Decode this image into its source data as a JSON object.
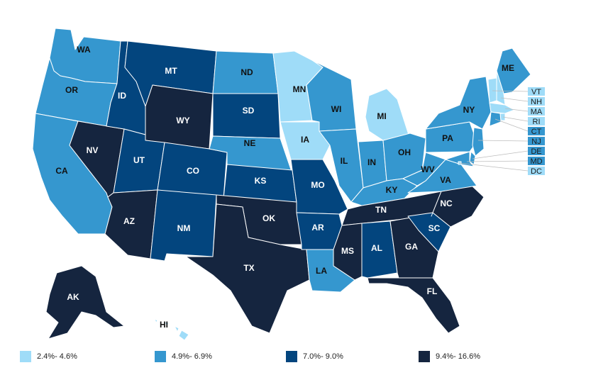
{
  "colors": {
    "c1": "#9fdcf8",
    "c2": "#3597cf",
    "c3": "#03457e",
    "c4": "#15253f"
  },
  "legend": [
    {
      "label": "2.4%- 4.6%",
      "color": "#9fdcf8"
    },
    {
      "label": "4.9%- 6.9%",
      "color": "#3597cf"
    },
    {
      "label": "7.0%- 9.0%",
      "color": "#03457e"
    },
    {
      "label": "9.4%- 16.6%",
      "color": "#15253f"
    }
  ],
  "states": {
    "WA": {
      "label": "WA",
      "bin": 2
    },
    "OR": {
      "label": "OR",
      "bin": 2
    },
    "CA": {
      "label": "CA",
      "bin": 2
    },
    "NV": {
      "label": "NV",
      "bin": 4
    },
    "ID": {
      "label": "ID",
      "bin": 3
    },
    "MT": {
      "label": "MT",
      "bin": 3
    },
    "WY": {
      "label": "WY",
      "bin": 4
    },
    "UT": {
      "label": "UT",
      "bin": 3
    },
    "CO": {
      "label": "CO",
      "bin": 3
    },
    "AZ": {
      "label": "AZ",
      "bin": 4
    },
    "NM": {
      "label": "NM",
      "bin": 3
    },
    "ND": {
      "label": "ND",
      "bin": 2
    },
    "SD": {
      "label": "SD",
      "bin": 3
    },
    "NE": {
      "label": "NE",
      "bin": 2
    },
    "KS": {
      "label": "KS",
      "bin": 3
    },
    "OK": {
      "label": "OK",
      "bin": 4
    },
    "TX": {
      "label": "TX",
      "bin": 4
    },
    "MN": {
      "label": "MN",
      "bin": 1
    },
    "IA": {
      "label": "IA",
      "bin": 1
    },
    "MO": {
      "label": "MO",
      "bin": 3
    },
    "AR": {
      "label": "AR",
      "bin": 3
    },
    "LA": {
      "label": "LA",
      "bin": 2
    },
    "WI": {
      "label": "WI",
      "bin": 2
    },
    "IL": {
      "label": "IL",
      "bin": 2
    },
    "MI": {
      "label": "MI",
      "bin": 1
    },
    "IN": {
      "label": "IN",
      "bin": 2
    },
    "OH": {
      "label": "OH",
      "bin": 2
    },
    "KY": {
      "label": "KY",
      "bin": 2
    },
    "TN": {
      "label": "TN",
      "bin": 4
    },
    "MS": {
      "label": "MS",
      "bin": 4
    },
    "AL": {
      "label": "AL",
      "bin": 3
    },
    "GA": {
      "label": "GA",
      "bin": 4
    },
    "FL": {
      "label": "FL",
      "bin": 4
    },
    "SC": {
      "label": "SC",
      "bin": 3
    },
    "NC": {
      "label": "NC",
      "bin": 4
    },
    "VA": {
      "label": "VA",
      "bin": 2
    },
    "WV": {
      "label": "WV",
      "bin": 2
    },
    "PA": {
      "label": "PA",
      "bin": 2
    },
    "NY": {
      "label": "NY",
      "bin": 2
    },
    "ME": {
      "label": "ME",
      "bin": 2
    },
    "AK": {
      "label": "AK",
      "bin": 4
    },
    "HI": {
      "label": "HI",
      "bin": 1
    }
  },
  "small_states": [
    {
      "code": "VT",
      "label": "VT",
      "bin": 1
    },
    {
      "code": "NH",
      "label": "NH",
      "bin": 1
    },
    {
      "code": "MA",
      "label": "MA",
      "bin": 1
    },
    {
      "code": "RI",
      "label": "RI",
      "bin": 1
    },
    {
      "code": "CT",
      "label": "CT",
      "bin": 2
    },
    {
      "code": "NJ",
      "label": "NJ",
      "bin": 2
    },
    {
      "code": "DE",
      "label": "DE",
      "bin": 2
    },
    {
      "code": "MD",
      "label": "MD",
      "bin": 2
    },
    {
      "code": "DC",
      "label": "DC",
      "bin": 1
    }
  ]
}
